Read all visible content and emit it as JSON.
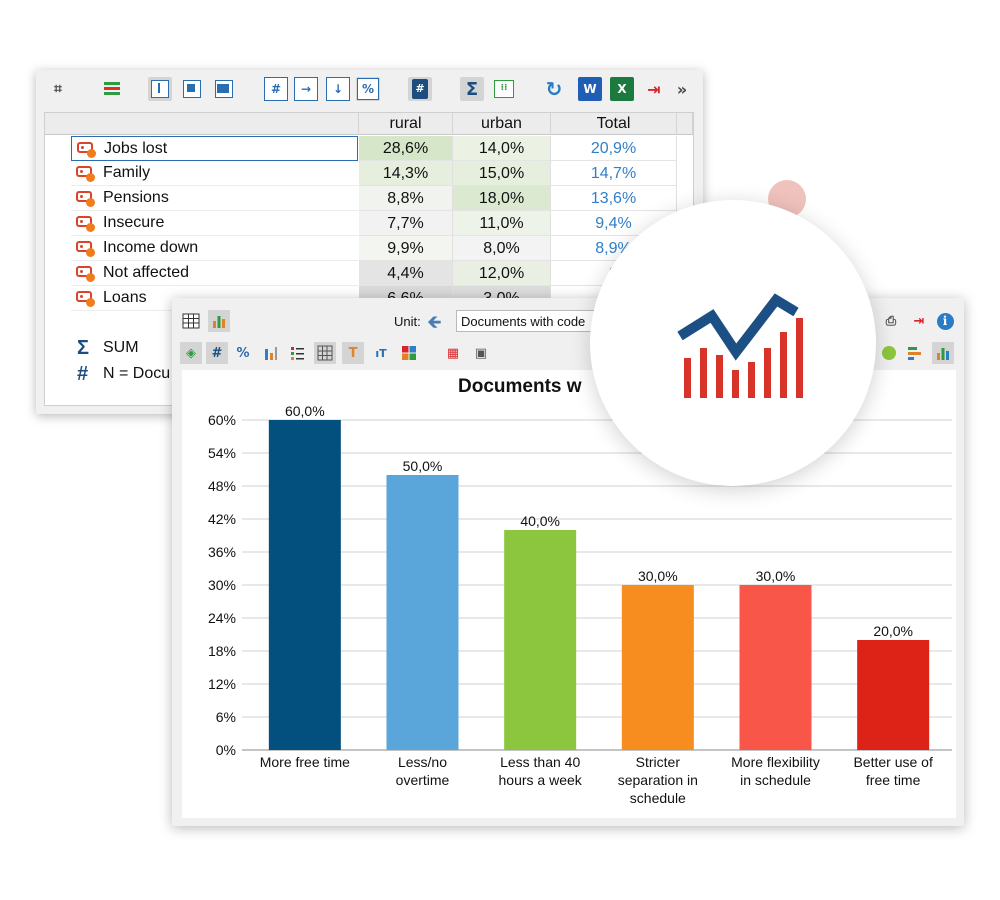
{
  "crosstab": {
    "toolbar_icons": [
      "table-select-icon",
      "stack-icon",
      "col-layout-1-icon",
      "col-layout-2-icon",
      "col-layout-3-icon",
      "hash-table-icon",
      "arrow-right-box-icon",
      "arrow-down-box-icon",
      "percent-icon",
      "document-hash-icon",
      "sigma-icon",
      "grid-toggle-icon",
      "refresh-icon",
      "word-icon",
      "excel-icon",
      "export-icon",
      "more-icon"
    ],
    "columns": [
      "rural",
      "urban",
      "Total"
    ],
    "rows": [
      {
        "label": "Jobs lost",
        "values": [
          "28,6%",
          "14,0%",
          "20,9%"
        ]
      },
      {
        "label": "Family",
        "values": [
          "14,3%",
          "15,0%",
          "14,7%"
        ]
      },
      {
        "label": "Pensions",
        "values": [
          "8,8%",
          "18,0%",
          "13,6%"
        ]
      },
      {
        "label": "Insecure",
        "values": [
          "7,7%",
          "11,0%",
          "9,4%"
        ]
      },
      {
        "label": "Income down",
        "values": [
          "9,9%",
          "8,0%",
          "8,9%"
        ]
      },
      {
        "label": "Not affected",
        "values": [
          "4,4%",
          "12,0%",
          "8"
        ]
      },
      {
        "label": "Loans",
        "values": [
          "6,6%",
          "3,0%",
          ""
        ]
      }
    ],
    "footer": [
      {
        "symbol": "Σ",
        "label": "SUM"
      },
      {
        "symbol": "#",
        "label": "N = Docu"
      }
    ]
  },
  "chart_window": {
    "unit_label": "Unit:",
    "unit_value": "Documents with code"
  },
  "chart_data": {
    "type": "bar",
    "title": "Documents w",
    "categories": [
      [
        "More free time"
      ],
      [
        "Less/no",
        "overtime"
      ],
      [
        "Less than 40",
        "hours a week"
      ],
      [
        "Stricter",
        "separation in",
        "schedule"
      ],
      [
        "More flexibility",
        "in schedule"
      ],
      [
        "Better use of",
        "free time"
      ]
    ],
    "values": [
      60,
      50,
      40,
      30,
      30,
      20
    ],
    "data_labels": [
      "60,0%",
      "50,0%",
      "40,0%",
      "30,0%",
      "30,0%",
      "20,0%"
    ],
    "colors": [
      "#03507f",
      "#5aa6da",
      "#8cc63f",
      "#f78c1f",
      "#f75649",
      "#dd2218"
    ],
    "ylim": [
      0,
      60
    ],
    "yticks": [
      "0%",
      "6%",
      "12%",
      "18%",
      "24%",
      "30%",
      "36%",
      "42%",
      "48%",
      "54%",
      "60%"
    ],
    "grid": true,
    "xlabel": "",
    "ylabel": ""
  }
}
